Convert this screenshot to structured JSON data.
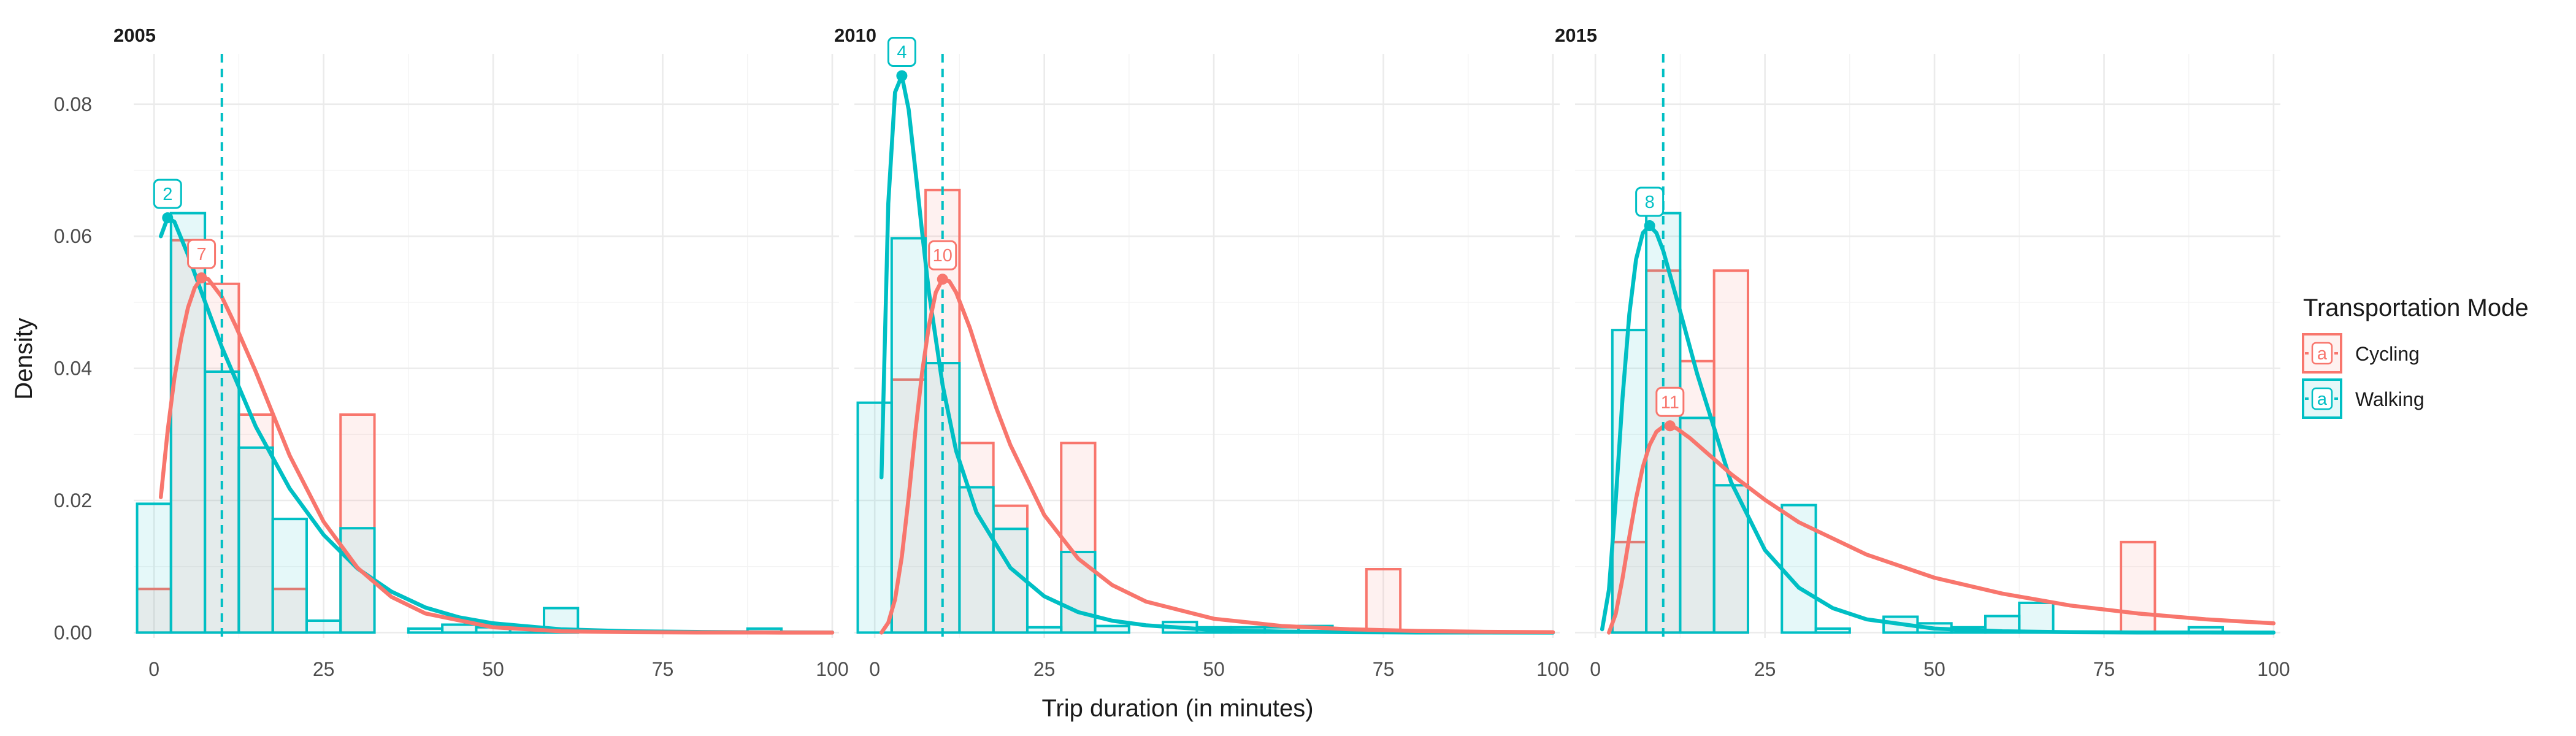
{
  "chart_data": {
    "type": "histogram",
    "x_axis_label": "Trip duration (in minutes)",
    "y_axis_label": "Density",
    "x_ticks": [
      0,
      25,
      50,
      75,
      100
    ],
    "y_ticks": [
      0.0,
      0.02,
      0.04,
      0.06,
      0.08
    ],
    "y_tick_labels": [
      "0.00",
      "0.02",
      "0.04",
      "0.06",
      "0.08"
    ],
    "xlim": [
      -3,
      101
    ],
    "ylim": [
      -0.0008,
      0.0876
    ],
    "bin_width": 5,
    "reference_line_x": 10,
    "legend": {
      "title": "Transportation Mode",
      "position": "right",
      "entries": [
        {
          "label": "Cycling",
          "key_text": "a"
        },
        {
          "label": "Walking",
          "key_text": "a"
        }
      ]
    },
    "colors": {
      "Cycling": "#F8766D",
      "Walking": "#00BFC4"
    },
    "panels": [
      {
        "title": "2005",
        "series": [
          {
            "name": "Cycling",
            "bin_centers": [
              0,
              5,
              10,
              15,
              20,
              25,
              30
            ],
            "values": [
              0.0066,
              0.0594,
              0.0528,
              0.033,
              0.0066,
              0.0,
              0.033
            ]
          },
          {
            "name": "Walking",
            "bin_centers": [
              0,
              5,
              10,
              15,
              20,
              25,
              30,
              40,
              45,
              50,
              55,
              60,
              90
            ],
            "values": [
              0.0195,
              0.0635,
              0.0395,
              0.028,
              0.0172,
              0.0018,
              0.0158,
              0.0006,
              0.0012,
              0.0008,
              0.0006,
              0.0037,
              0.0006
            ]
          }
        ],
        "peaks": [
          {
            "series": "Walking",
            "x": 2,
            "y": 0.0628
          },
          {
            "series": "Cycling",
            "x": 7,
            "y": 0.0537
          }
        ]
      },
      {
        "title": "2010",
        "series": [
          {
            "name": "Cycling",
            "bin_centers": [
              5,
              10,
              15,
              20,
              25,
              30,
              50,
              60,
              75
            ],
            "values": [
              0.0383,
              0.067,
              0.0287,
              0.0192,
              0.0,
              0.0287,
              0.0,
              0.0,
              0.0096
            ]
          },
          {
            "name": "Walking",
            "bin_centers": [
              0,
              5,
              10,
              15,
              20,
              25,
              30,
              35,
              45,
              50,
              55,
              60,
              65
            ],
            "values": [
              0.0348,
              0.0597,
              0.0408,
              0.022,
              0.0157,
              0.0008,
              0.0122,
              0.001,
              0.0016,
              0.0008,
              0.0008,
              0.0008,
              0.001
            ]
          }
        ],
        "peaks": [
          {
            "series": "Walking",
            "x": 4,
            "y": 0.0843
          },
          {
            "series": "Cycling",
            "x": 10,
            "y": 0.0535
          }
        ]
      },
      {
        "title": "2015",
        "series": [
          {
            "name": "Cycling",
            "bin_centers": [
              5,
              10,
              15,
              20,
              25,
              30,
              80
            ],
            "values": [
              0.0137,
              0.0548,
              0.0411,
              0.0548,
              0.0,
              0.0,
              0.0137
            ]
          },
          {
            "name": "Walking",
            "bin_centers": [
              5,
              10,
              15,
              20,
              25,
              30,
              35,
              45,
              50,
              55,
              60,
              65,
              90
            ],
            "values": [
              0.0458,
              0.0635,
              0.0325,
              0.0223,
              0.0,
              0.0193,
              0.0006,
              0.0024,
              0.0014,
              0.0008,
              0.0025,
              0.0045,
              0.0008
            ]
          }
        ],
        "peaks": [
          {
            "series": "Walking",
            "x": 8,
            "y": 0.0616
          },
          {
            "series": "Cycling",
            "x": 11,
            "y": 0.0313
          }
        ]
      }
    ],
    "density_curves": [
      {
        "panel": "2005",
        "series": [
          {
            "name": "Walking",
            "x": [
              1,
              2,
              3,
              5,
              7,
              10,
              15,
              20,
              25,
              30,
              35,
              40,
              45,
              50,
              60,
              70,
              80,
              90,
              100
            ],
            "y": [
              0.06,
              0.0628,
              0.0622,
              0.0572,
              0.0515,
              0.0432,
              0.0312,
              0.0218,
              0.0148,
              0.0097,
              0.0062,
              0.0038,
              0.0023,
              0.0014,
              0.0005,
              0.0002,
              0.0001,
              4e-05,
              2e-05
            ]
          },
          {
            "name": "Cycling",
            "x": [
              1,
              2,
              3,
              4,
              5,
              6,
              7,
              8,
              10,
              12,
              15,
              20,
              25,
              30,
              35,
              40,
              50,
              60,
              70,
              80,
              90,
              100
            ],
            "y": [
              0.0205,
              0.0305,
              0.0385,
              0.0445,
              0.0492,
              0.0522,
              0.0537,
              0.0535,
              0.0508,
              0.0465,
              0.0395,
              0.0268,
              0.0168,
              0.0098,
              0.0054,
              0.0029,
              0.0008,
              0.0002,
              6e-05,
              2e-05,
              1e-05,
              0.0
            ]
          }
        ]
      },
      {
        "panel": "2010",
        "series": [
          {
            "name": "Walking",
            "x": [
              1,
              2,
              3,
              4,
              5,
              6,
              7,
              8,
              10,
              12,
              15,
              20,
              25,
              30,
              35,
              40,
              50,
              60,
              70,
              80,
              90,
              100
            ],
            "y": [
              0.0235,
              0.065,
              0.0818,
              0.0843,
              0.0792,
              0.07,
              0.0605,
              0.0515,
              0.0375,
              0.0275,
              0.0182,
              0.0098,
              0.0055,
              0.0031,
              0.0018,
              0.0011,
              0.0004,
              0.00015,
              6e-05,
              2e-05,
              1e-05,
              0.0
            ]
          },
          {
            "name": "Cycling",
            "x": [
              1,
              2,
              3,
              4,
              5,
              6,
              7,
              8,
              9,
              10,
              11,
              12,
              14,
              16,
              18,
              20,
              25,
              30,
              35,
              40,
              50,
              60,
              70,
              80,
              90,
              100
            ],
            "y": [
              0.0,
              0.0015,
              0.005,
              0.0115,
              0.0205,
              0.0305,
              0.0395,
              0.0465,
              0.0515,
              0.0535,
              0.0532,
              0.0515,
              0.0462,
              0.0398,
              0.0338,
              0.0284,
              0.0178,
              0.0112,
              0.0072,
              0.0047,
              0.0021,
              0.001,
              0.0005,
              0.00025,
              0.00012,
              6e-05
            ]
          }
        ]
      },
      {
        "panel": "2015",
        "series": [
          {
            "name": "Walking",
            "x": [
              1,
              2,
              3,
              4,
              5,
              6,
              7,
              8,
              9,
              10,
              12,
              15,
              20,
              25,
              30,
              35,
              40,
              50,
              60,
              70,
              80,
              90,
              100
            ],
            "y": [
              0.0005,
              0.0065,
              0.02,
              0.0355,
              0.0482,
              0.0565,
              0.0605,
              0.0616,
              0.0605,
              0.0578,
              0.0505,
              0.0392,
              0.0228,
              0.0125,
              0.0068,
              0.0037,
              0.002,
              0.0006,
              0.0002,
              6e-05,
              2e-05,
              1e-05,
              0.0
            ]
          },
          {
            "name": "Cycling",
            "x": [
              2,
              3,
              4,
              5,
              6,
              7,
              8,
              9,
              10,
              11,
              12,
              14,
              16,
              18,
              20,
              25,
              30,
              40,
              50,
              60,
              70,
              80,
              90,
              100
            ],
            "y": [
              0.0,
              0.0028,
              0.0082,
              0.0145,
              0.0203,
              0.0251,
              0.0284,
              0.0304,
              0.0312,
              0.0313,
              0.0309,
              0.0294,
              0.0276,
              0.0258,
              0.024,
              0.0201,
              0.0167,
              0.0118,
              0.0083,
              0.0059,
              0.0041,
              0.0029,
              0.002,
              0.0014
            ]
          }
        ]
      }
    ]
  }
}
